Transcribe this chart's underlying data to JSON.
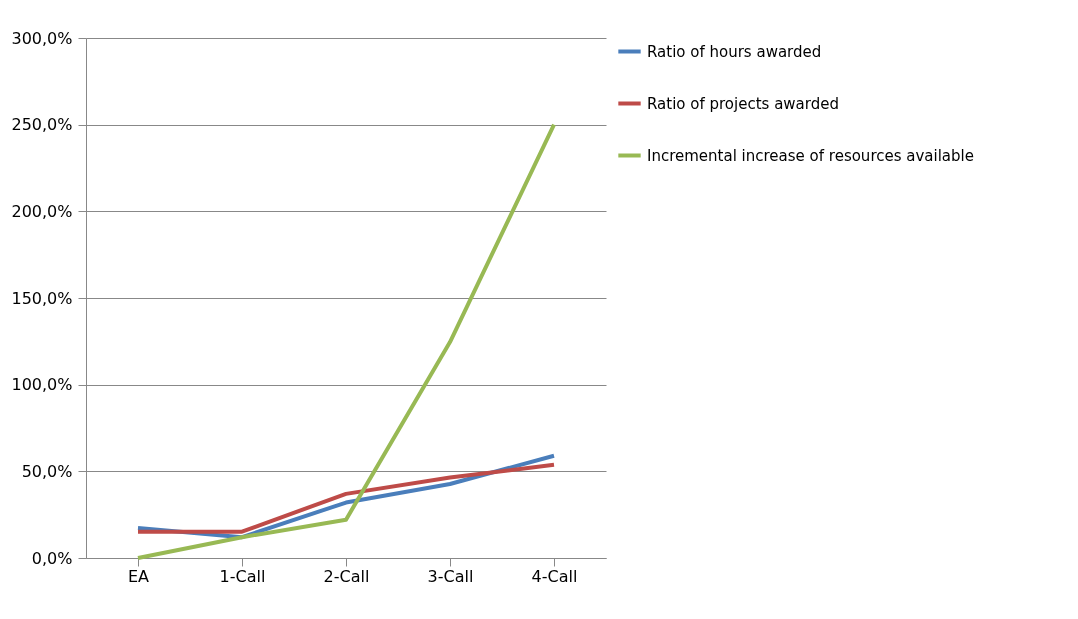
{
  "chart_data": {
    "type": "line",
    "categories": [
      "EA",
      "1-Call",
      "2-Call",
      "3-Call",
      "4-Call"
    ],
    "series": [
      {
        "name": "Ratio of hours awarded",
        "color": "#4a7ebb",
        "values": [
          17.3,
          12,
          32,
          42.7,
          59
        ]
      },
      {
        "name": "Ratio of projects awarded",
        "color": "#be4b48",
        "values": [
          15.2,
          15.2,
          37,
          46.4,
          53.8
        ]
      },
      {
        "name": "Incremental increase of resources available",
        "color": "#98b954",
        "values": [
          0,
          12,
          22.1,
          124.6,
          250
        ]
      }
    ],
    "ylim": [
      0,
      300
    ],
    "yticks": [
      {
        "value": 0,
        "label": "0,0%"
      },
      {
        "value": 50,
        "label": "50,0%"
      },
      {
        "value": 100,
        "label": "100,0%"
      },
      {
        "value": 150,
        "label": "150,0%"
      },
      {
        "value": 200,
        "label": "200,0%"
      },
      {
        "value": 250,
        "label": "250,0%"
      },
      {
        "value": 300,
        "label": "300,0%"
      }
    ],
    "grid": "y",
    "legend": "right",
    "marker": "none",
    "line_style": "solid"
  }
}
